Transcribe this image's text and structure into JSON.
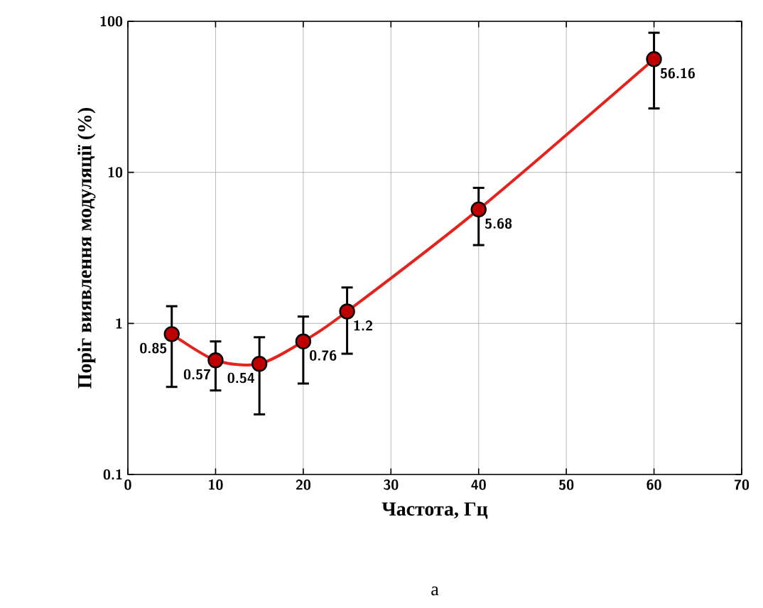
{
  "chart_data": {
    "type": "line",
    "xlabel": "Частота, Гц",
    "ylabel": "Поріг виявлення модуляції (%)",
    "annotations": [
      "а"
    ],
    "x": [
      5,
      10,
      15,
      20,
      25,
      40,
      60
    ],
    "series": [
      {
        "color": "#e5221c",
        "values": [
          0.85,
          0.57,
          0.54,
          0.76,
          1.2,
          5.68,
          56.16
        ],
        "errors": [
          [
            0.38,
            1.3
          ],
          [
            0.36,
            0.76
          ],
          [
            0.25,
            0.81
          ],
          [
            0.4,
            1.11
          ],
          [
            0.63,
            1.73
          ],
          [
            3.3,
            7.9
          ],
          [
            26.5,
            84
          ]
        ]
      }
    ],
    "xlim": [
      0,
      70
    ],
    "xticks": [
      0,
      10,
      20,
      30,
      40,
      50,
      60,
      70
    ],
    "ylim": [
      0.1,
      100
    ],
    "yticks": [
      0.1,
      1,
      10,
      100
    ],
    "log": "y",
    "grid": true,
    "marker": "circle",
    "line_style": "solid",
    "data_labels": true
  }
}
